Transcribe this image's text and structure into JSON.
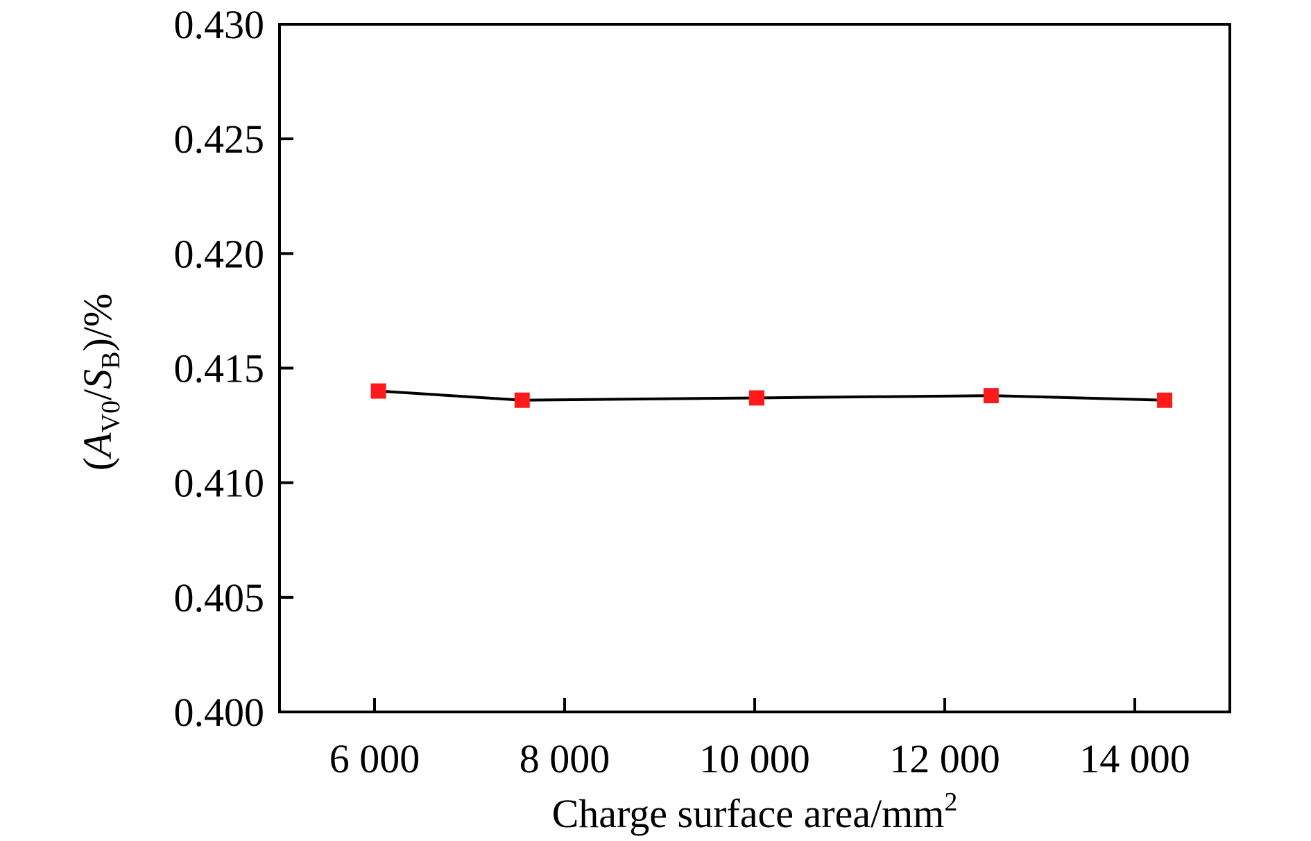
{
  "chart_data": {
    "type": "line",
    "title": "",
    "xlabel": {
      "text": "Charge surface area/mm",
      "superscript": "2"
    },
    "ylabel": {
      "open": "(",
      "var1": "A",
      "sub1": "V0",
      "slash": "/",
      "var2": "S",
      "sub2": "B",
      "close": ")/%"
    },
    "xlim": [
      5000,
      15000
    ],
    "ylim": [
      0.4,
      0.43
    ],
    "xticks": [
      6000,
      8000,
      10000,
      12000,
      14000
    ],
    "xtick_labels": [
      "6 000",
      "8 000",
      "10 000",
      "12 000",
      "14 000"
    ],
    "yticks": [
      0.4,
      0.405,
      0.41,
      0.415,
      0.42,
      0.425,
      0.43
    ],
    "ytick_labels": [
      "0.400",
      "0.405",
      "0.410",
      "0.415",
      "0.420",
      "0.425",
      "0.430"
    ],
    "series": [
      {
        "x": [
          6041,
          7553,
          10022,
          12488,
          14314
        ],
        "y": [
          0.414,
          0.4136,
          0.4137,
          0.4138,
          0.4136
        ],
        "line_color": "#000000",
        "marker": "square",
        "marker_color": "#ff1a1a"
      }
    ],
    "grid": false,
    "legend": "none"
  }
}
